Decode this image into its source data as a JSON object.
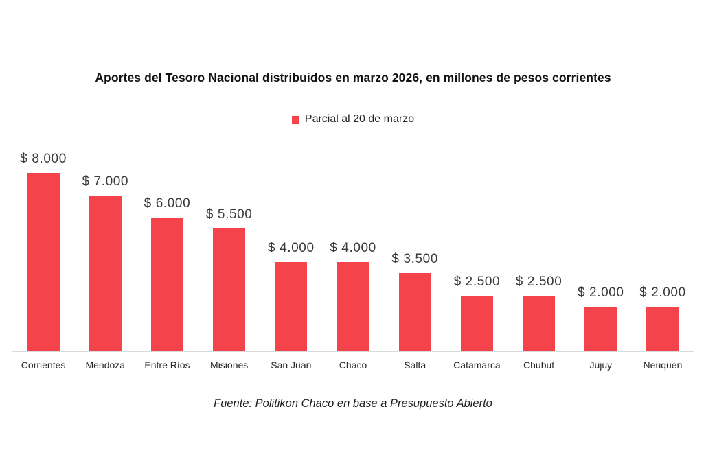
{
  "page": {
    "background_color": "#ffffff"
  },
  "title": "Aportes del Tesoro Nacional distribuidos en marzo 2026, en millones de pesos corrientes",
  "legend": {
    "swatch_color": "#f4434b",
    "label": "Parcial al 20 de marzo"
  },
  "source": "Fuente: Politikon Chaco en base a Presupuesto Abierto",
  "chart_data": {
    "type": "bar",
    "title": "Aportes del Tesoro Nacional distribuidos en marzo 2026, en millones de pesos corrientes",
    "legend_entries": [
      "Parcial al 20 de marzo"
    ],
    "legend_position": "top-center",
    "categories": [
      "Corrientes",
      "Mendoza",
      "Entre Ríos",
      "Misiones",
      "San Juan",
      "Chaco",
      "Salta",
      "Catamarca",
      "Chubut",
      "Jujuy",
      "Neuquén"
    ],
    "values": [
      8000,
      7000,
      6000,
      5500,
      4000,
      4000,
      3500,
      2500,
      2500,
      2000,
      2000
    ],
    "value_labels": [
      "$ 8.000",
      "$ 7.000",
      "$ 6.000",
      "$ 5.500",
      "$ 4.000",
      "$ 4.000",
      "$ 3.500",
      "$ 2.500",
      "$ 2.500",
      "$ 2.000",
      "$ 2.000"
    ],
    "bar_color": "#f4434b",
    "axis_line_color": "#d7dbdb",
    "xlabel": "",
    "ylabel": "",
    "ylim": [
      0,
      8000
    ],
    "grid": false,
    "unit": "millones de pesos corrientes",
    "annotation_source": "Fuente: Politikon Chaco en base a Presupuesto Abierto"
  }
}
